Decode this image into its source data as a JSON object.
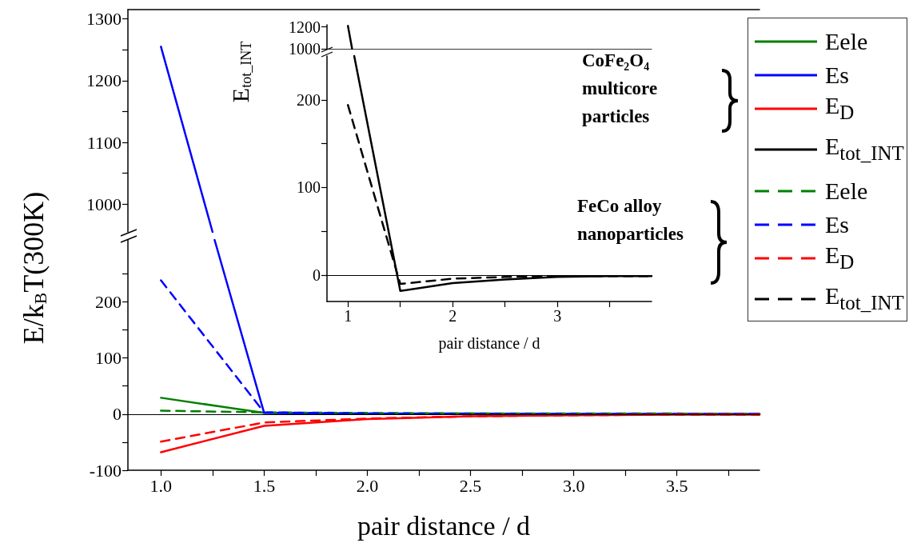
{
  "chart_data": [
    {
      "type": "line",
      "xlim": [
        0.84,
        3.9
      ],
      "ylim": [
        955,
        1315
      ],
      "yticks": [
        1000,
        {
          "value": 1050,
          "label": null
        },
        1100,
        {
          "value": 1150,
          "label": null
        },
        1200,
        {
          "value": 1250,
          "label": null
        },
        1300
      ],
      "tick_labels": "y",
      "series": [
        {
          "color": "#0000ff",
          "line_style": "solid",
          "x": [
            1,
            1.25
          ],
          "values": [
            1255,
            955
          ]
        }
      ]
    },
    {
      "type": "line",
      "xlabel": "pair distance / d",
      "ylabel": "E/k$_{B}$T(300K)",
      "x": [
        1,
        1.5,
        2,
        2.5,
        3,
        3.5,
        3.9
      ],
      "xlim": [
        0.84,
        3.9
      ],
      "xticks": [
        {
          "value": 1,
          "label": "1.0"
        },
        {
          "value": 1.25,
          "label": null
        },
        {
          "value": 1.5,
          "label": "1.5"
        },
        {
          "value": 1.75,
          "label": null
        },
        {
          "value": 2,
          "label": "2.0"
        },
        {
          "value": 2.25,
          "label": null
        },
        {
          "value": 2.5,
          "label": "2.5"
        },
        {
          "value": 2.75,
          "label": null
        },
        {
          "value": 3,
          "label": "3.0"
        },
        {
          "value": 3.25,
          "label": null
        },
        {
          "value": 3.5,
          "label": "3.5"
        },
        {
          "value": 3.75,
          "label": null
        }
      ],
      "ylim": [
        -100,
        310
      ],
      "yticks": [
        -100,
        {
          "value": -50,
          "label": null
        },
        0,
        {
          "value": 50,
          "label": null
        },
        100,
        {
          "value": 150,
          "label": null
        },
        200,
        {
          "value": 250,
          "label": null
        }
      ],
      "legend": "right",
      "ref_lines": [
        {
          "axis": "y",
          "value": 0,
          "color": "#000000"
        }
      ],
      "series": [
        {
          "name": "Eele",
          "color": "#008000",
          "line_style": "solid",
          "values": [
            29,
            2,
            1,
            1,
            0,
            0,
            0
          ]
        },
        {
          "name": "Es",
          "color": "#0000ff",
          "line_style": "solid",
          "x": [
            1.26,
            1.5,
            2,
            2.5,
            3,
            3.5,
            3.9
          ],
          "values": [
            310,
            2,
            0,
            0,
            0,
            0,
            0
          ]
        },
        {
          "name": "E$_{D}$",
          "color": "#ff0000",
          "line_style": "solid",
          "values": [
            -68,
            -21,
            -9,
            -4,
            -2,
            -1,
            -1
          ]
        },
        {
          "name": "Eele",
          "color": "#008000",
          "line_style": "dashed",
          "values": [
            6,
            3,
            2,
            1,
            1,
            1,
            0
          ]
        },
        {
          "name": "Es",
          "color": "#0000ff",
          "line_style": "dashed",
          "values": [
            238,
            3,
            1,
            0,
            0,
            0,
            0
          ]
        },
        {
          "name": "E$_{D}$",
          "color": "#ff0000",
          "line_style": "dashed",
          "values": [
            -49,
            -15,
            -8,
            -4,
            -2,
            -1,
            -1
          ]
        }
      ]
    },
    {
      "type": "line",
      "xlim": [
        0.8,
        3.9
      ],
      "ylim": [
        1000,
        1220
      ],
      "yticks": [
        1000,
        1200
      ],
      "tick_labels": "y",
      "series": [
        {
          "color": "#000000",
          "line_style": "solid",
          "x": [
            1,
            1.04
          ],
          "values": [
            1210,
            1000
          ]
        }
      ]
    },
    {
      "type": "line",
      "xlabel": "pair distance / d",
      "ylabel": "E$_{tot_INT}$",
      "x": [
        1,
        1.5,
        2,
        2.5,
        3,
        3.5,
        3.9
      ],
      "xlim": [
        0.8,
        3.9
      ],
      "xticks": [
        1,
        {
          "value": 1.5,
          "label": null
        },
        2,
        {
          "value": 2.5,
          "label": null
        },
        3,
        {
          "value": 3.5,
          "label": null
        }
      ],
      "ylim": [
        -30,
        250
      ],
      "yticks": [
        0,
        {
          "value": 50,
          "label": null
        },
        100,
        {
          "value": 150,
          "label": null
        },
        200
      ],
      "legend": "right",
      "ref_lines": [
        {
          "axis": "y",
          "value": 0,
          "color": "#000000"
        }
      ],
      "annotations": [
        "CoFe₂O₄\nmulticore\nparticles",
        "FeCo alloy\nnanoparticles"
      ],
      "series": [
        {
          "name": "E$_{tot_INT}$",
          "color": "#000000",
          "line_style": "solid",
          "x": [
            1.06,
            1.5,
            2,
            2.5,
            3,
            3.5,
            3.9
          ],
          "values": [
            250,
            -18,
            -9,
            -5,
            -2,
            -1,
            -1
          ]
        },
        {
          "name": "E$_{tot_INT}$",
          "color": "#000000",
          "line_style": "dashed",
          "values": [
            194,
            -10,
            -4,
            -2,
            -1,
            -1,
            -1
          ]
        }
      ]
    }
  ]
}
